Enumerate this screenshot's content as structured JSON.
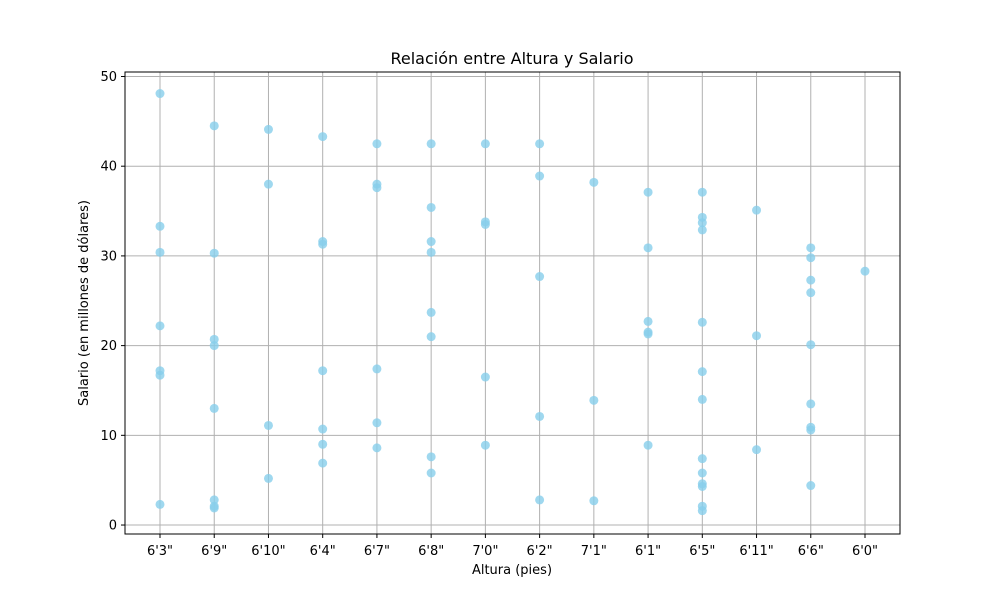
{
  "chart_data": {
    "type": "scatter",
    "title": "Relación entre Altura y Salario",
    "xlabel": "Altura (pies)",
    "ylabel": "Salario (en millones de dólares)",
    "categories": [
      "6'3\"",
      "6'9\"",
      "6'10\"",
      "6'4\"",
      "6'7\"",
      "6'8\"",
      "7'0\"",
      "6'2\"",
      "7'1\"",
      "6'1\"",
      "6'5\"",
      "6'11\"",
      "6'6\"",
      "6'0\""
    ],
    "ylim": [
      -1,
      50.5
    ],
    "yticks": [
      0,
      10,
      20,
      30,
      40,
      50
    ],
    "grid": true,
    "marker_color": "#87CEEB",
    "marker_alpha": 0.8,
    "points": [
      {
        "x": "6'3\"",
        "y": [
          48.1,
          33.3,
          30.4,
          22.2,
          17.2,
          16.7,
          2.3
        ]
      },
      {
        "x": "6'9\"",
        "y": [
          44.5,
          30.3,
          20.7,
          20.0,
          13.0,
          2.8,
          2.1,
          1.9
        ]
      },
      {
        "x": "6'10\"",
        "y": [
          44.1,
          38.0,
          11.1,
          5.2
        ]
      },
      {
        "x": "6'4\"",
        "y": [
          43.3,
          31.6,
          31.3,
          17.2,
          10.7,
          9.0,
          6.9
        ]
      },
      {
        "x": "6'7\"",
        "y": [
          42.5,
          38.0,
          37.6,
          17.4,
          11.4,
          8.6
        ]
      },
      {
        "x": "6'8\"",
        "y": [
          42.5,
          35.4,
          31.6,
          30.4,
          23.7,
          21.0,
          7.6,
          5.8
        ]
      },
      {
        "x": "7'0\"",
        "y": [
          42.5,
          33.8,
          33.5,
          16.5,
          8.9
        ]
      },
      {
        "x": "6'2\"",
        "y": [
          42.5,
          38.9,
          27.7,
          12.1,
          2.8
        ]
      },
      {
        "x": "7'1\"",
        "y": [
          38.2,
          13.9,
          2.7
        ]
      },
      {
        "x": "6'1\"",
        "y": [
          37.1,
          30.9,
          22.7,
          21.5,
          21.3,
          8.9
        ]
      },
      {
        "x": "6'5\"",
        "y": [
          37.1,
          34.3,
          33.7,
          32.9,
          22.6,
          17.1,
          14.0,
          7.4,
          5.8,
          4.6,
          4.3,
          2.1,
          1.6
        ]
      },
      {
        "x": "6'11\"",
        "y": [
          35.1,
          21.1,
          8.4
        ]
      },
      {
        "x": "6'6\"",
        "y": [
          30.9,
          29.8,
          27.3,
          25.9,
          20.1,
          13.5,
          10.9,
          10.6,
          4.4
        ]
      },
      {
        "x": "6'0\"",
        "y": [
          28.3
        ]
      }
    ]
  }
}
